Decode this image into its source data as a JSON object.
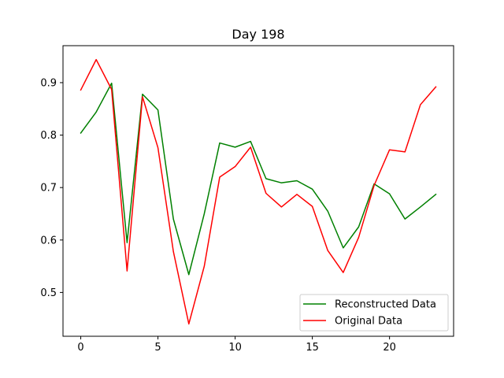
{
  "chart_data": {
    "type": "line",
    "title": "Day 198",
    "xlabel": "",
    "ylabel": "",
    "xlim": [
      -1.15,
      24.15
    ],
    "ylim": [
      0.4165,
      0.9705
    ],
    "xticks": [
      0,
      5,
      10,
      15,
      20
    ],
    "xtick_labels": [
      "0",
      "5",
      "10",
      "15",
      "20"
    ],
    "yticks": [
      0.5,
      0.6,
      0.7,
      0.8,
      0.9
    ],
    "ytick_labels": [
      "0.5",
      "0.6",
      "0.7",
      "0.8",
      "0.9"
    ],
    "grid": false,
    "legend_position": "lower-right",
    "x": [
      0,
      1,
      2,
      3,
      4,
      5,
      6,
      7,
      8,
      9,
      10,
      11,
      12,
      13,
      14,
      15,
      16,
      17,
      18,
      19,
      20,
      21,
      22,
      23
    ],
    "series": [
      {
        "name": "Reconstructed Data",
        "color": "#008000",
        "values": [
          0.804,
          0.844,
          0.899,
          0.595,
          0.878,
          0.848,
          0.64,
          0.534,
          0.65,
          0.785,
          0.777,
          0.788,
          0.717,
          0.709,
          0.713,
          0.697,
          0.655,
          0.585,
          0.625,
          0.707,
          0.688,
          0.64,
          0.663,
          0.687
        ]
      },
      {
        "name": "Original Data",
        "color": "#ff0000",
        "values": [
          0.886,
          0.944,
          0.887,
          0.541,
          0.873,
          0.776,
          0.578,
          0.44,
          0.55,
          0.72,
          0.74,
          0.777,
          0.689,
          0.663,
          0.687,
          0.664,
          0.58,
          0.538,
          0.605,
          0.704,
          0.772,
          0.768,
          0.858,
          0.892
        ]
      }
    ]
  }
}
